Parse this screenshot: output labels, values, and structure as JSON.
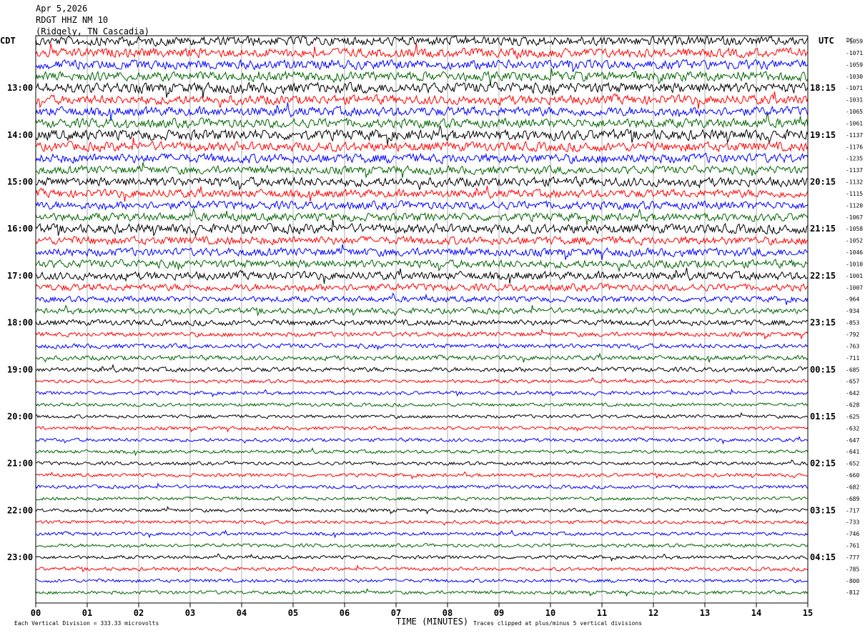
{
  "header": {
    "date": "Apr 5,2026",
    "station": "RDGT HHZ NM 10",
    "location": "(Ridgely, TN Cascadia)"
  },
  "axis": {
    "left_zone": "CDT",
    "right_zone": "UTC",
    "right_col_header": "DC",
    "x_title": "TIME (MINUTES)"
  },
  "footer": {
    "scale_note": "Each Vertical Division =  333.33 microvolts",
    "clip_note": "Traces clipped at plus/minus 5 vertical divisions"
  },
  "colors": [
    "#000000",
    "#ff0000",
    "#0000ff",
    "#006400"
  ],
  "chart_data": {
    "type": "line",
    "title": "",
    "xlabel": "TIME (MINUTES)",
    "xlim": [
      0,
      15
    ],
    "x_ticks": [
      "00",
      "01",
      "02",
      "03",
      "04",
      "05",
      "06",
      "07",
      "08",
      "09",
      "10",
      "11",
      "12",
      "13",
      "14",
      "15"
    ],
    "row_count": 48,
    "left_time_labels": [
      {
        "row": 4,
        "label": "13:00"
      },
      {
        "row": 8,
        "label": "14:00"
      },
      {
        "row": 12,
        "label": "15:00"
      },
      {
        "row": 16,
        "label": "16:00"
      },
      {
        "row": 20,
        "label": "17:00"
      },
      {
        "row": 24,
        "label": "18:00"
      },
      {
        "row": 28,
        "label": "19:00"
      },
      {
        "row": 32,
        "label": "20:00"
      },
      {
        "row": 36,
        "label": "21:00"
      },
      {
        "row": 40,
        "label": "22:00"
      },
      {
        "row": 44,
        "label": "23:00"
      }
    ],
    "right_time_labels": [
      {
        "row": 4,
        "label": "18:15"
      },
      {
        "row": 8,
        "label": "19:15"
      },
      {
        "row": 12,
        "label": "20:15"
      },
      {
        "row": 16,
        "label": "21:15"
      },
      {
        "row": 20,
        "label": "22:15"
      },
      {
        "row": 24,
        "label": "23:15"
      },
      {
        "row": 28,
        "label": "00:15"
      },
      {
        "row": 32,
        "label": "01:15"
      },
      {
        "row": 36,
        "label": "02:15"
      },
      {
        "row": 40,
        "label": "03:15"
      },
      {
        "row": 44,
        "label": "04:15"
      }
    ],
    "dc_offsets": [
      -1059,
      -1071,
      -1059,
      -1030,
      -1071,
      -1031,
      -1065,
      -1061,
      -1137,
      -1176,
      -1235,
      -1137,
      -1132,
      -1115,
      -1120,
      -1067,
      -1058,
      -1052,
      -1046,
      -1010,
      -1001,
      -1007,
      -964,
      -934,
      -853,
      -792,
      -763,
      -711,
      -685,
      -657,
      -642,
      -628,
      -625,
      -632,
      -647,
      -641,
      -652,
      -660,
      -682,
      -689,
      -717,
      -733,
      -746,
      -761,
      -777,
      -785,
      -800,
      -812
    ],
    "trace_amplitude": [
      8,
      8,
      8,
      8,
      9,
      8,
      8,
      8,
      9,
      8,
      8,
      7,
      8,
      7,
      7,
      7,
      8,
      7,
      7,
      7,
      7,
      6,
      5,
      5,
      5,
      4,
      4,
      4,
      4,
      3,
      3,
      3,
      3,
      3,
      3,
      3,
      3,
      3,
      3,
      3,
      3,
      3,
      3,
      3,
      3,
      3,
      3,
      3
    ]
  }
}
